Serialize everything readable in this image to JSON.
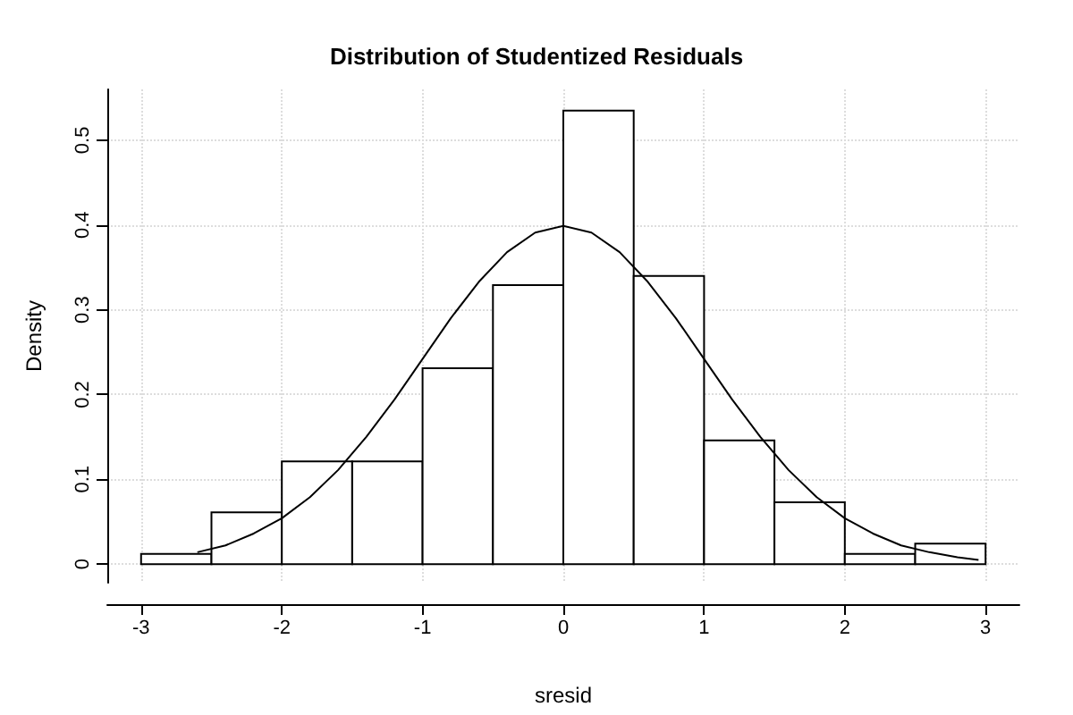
{
  "chart_data": {
    "type": "histogram",
    "title": "Distribution of Studentized Residuals",
    "xlabel": "sresid",
    "ylabel": "Density",
    "series": [
      {
        "color": "#ffffff",
        "bins": [
          -3,
          -2.5,
          -2,
          -1.5,
          -1,
          -0.5,
          0,
          0.5,
          1,
          1.5,
          2,
          2.5,
          3
        ],
        "values": [
          0.012,
          0.061,
          0.121,
          0.121,
          0.231,
          0.329,
          0.535,
          0.34,
          0.146,
          0.073,
          0.012,
          0.024
        ]
      },
      {
        "type": "line",
        "color": "#000000",
        "x": [
          -2.6,
          -2.4,
          -2.2,
          -2,
          -1.8,
          -1.6,
          -1.4,
          -1.2,
          -1,
          -0.8,
          -0.6,
          -0.4,
          -0.2,
          0,
          0.2,
          0.4,
          0.6,
          0.8,
          1,
          1.2,
          1.4,
          1.6,
          1.8,
          2,
          2.2,
          2.4,
          2.6,
          2.8,
          2.95
        ],
        "values": [
          0.014,
          0.022,
          0.036,
          0.054,
          0.079,
          0.111,
          0.15,
          0.194,
          0.242,
          0.29,
          0.333,
          0.368,
          0.391,
          0.399,
          0.391,
          0.368,
          0.333,
          0.29,
          0.242,
          0.194,
          0.15,
          0.111,
          0.079,
          0.054,
          0.036,
          0.022,
          0.014,
          0.008,
          0.005
        ]
      }
    ],
    "xlim": [
      -3.24,
      3.24
    ],
    "ylim": [
      -0.022,
      0.56
    ],
    "xticks": [
      -3,
      -2,
      -1,
      0,
      1,
      2,
      3
    ],
    "yticks": [
      0,
      0.1,
      0.2,
      0.3,
      0.4,
      0.5
    ],
    "grid": true
  }
}
